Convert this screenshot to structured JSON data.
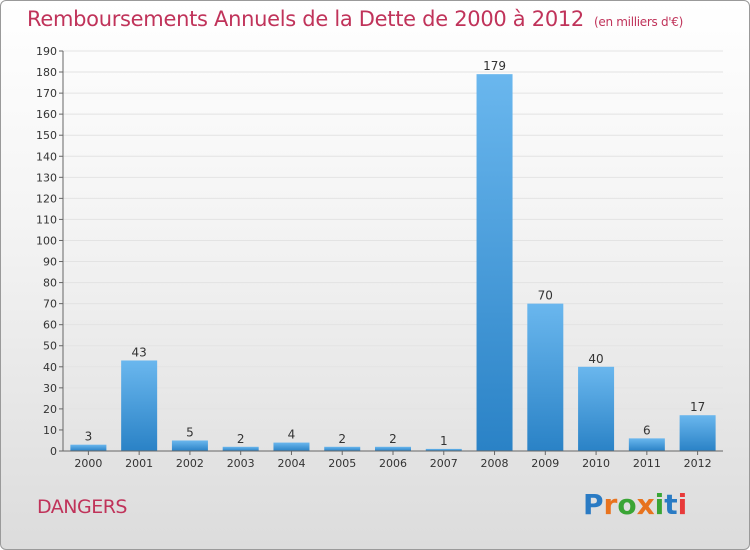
{
  "title": "Remboursements Annuels de la Dette de 2000 à 2012",
  "subtitle": "(en milliers d'€)",
  "city": "DANGERS",
  "brand": {
    "letters": [
      "P",
      "r",
      "o",
      "x",
      "i",
      "t",
      "i"
    ],
    "colors": [
      "#2a7bc4",
      "#e8731e",
      "#3aa535",
      "#e8731e",
      "#3aa535",
      "#2a7bc4",
      "#e83a3a"
    ]
  },
  "colors": {
    "bar_top": "#6ab7ee",
    "bar_bottom": "#2a82c6",
    "accent": "#c0335a"
  },
  "chart_data": {
    "type": "bar",
    "categories": [
      "2000",
      "2001",
      "2002",
      "2003",
      "2004",
      "2005",
      "2006",
      "2007",
      "2008",
      "2009",
      "2010",
      "2011",
      "2012"
    ],
    "values": [
      3,
      43,
      5,
      2,
      4,
      2,
      2,
      1,
      179,
      70,
      40,
      6,
      17
    ],
    "ylim": [
      0,
      190
    ],
    "yticks": [
      0,
      10,
      20,
      30,
      40,
      50,
      60,
      70,
      80,
      90,
      100,
      110,
      120,
      130,
      140,
      150,
      160,
      170,
      180,
      190
    ],
    "grid": true
  }
}
